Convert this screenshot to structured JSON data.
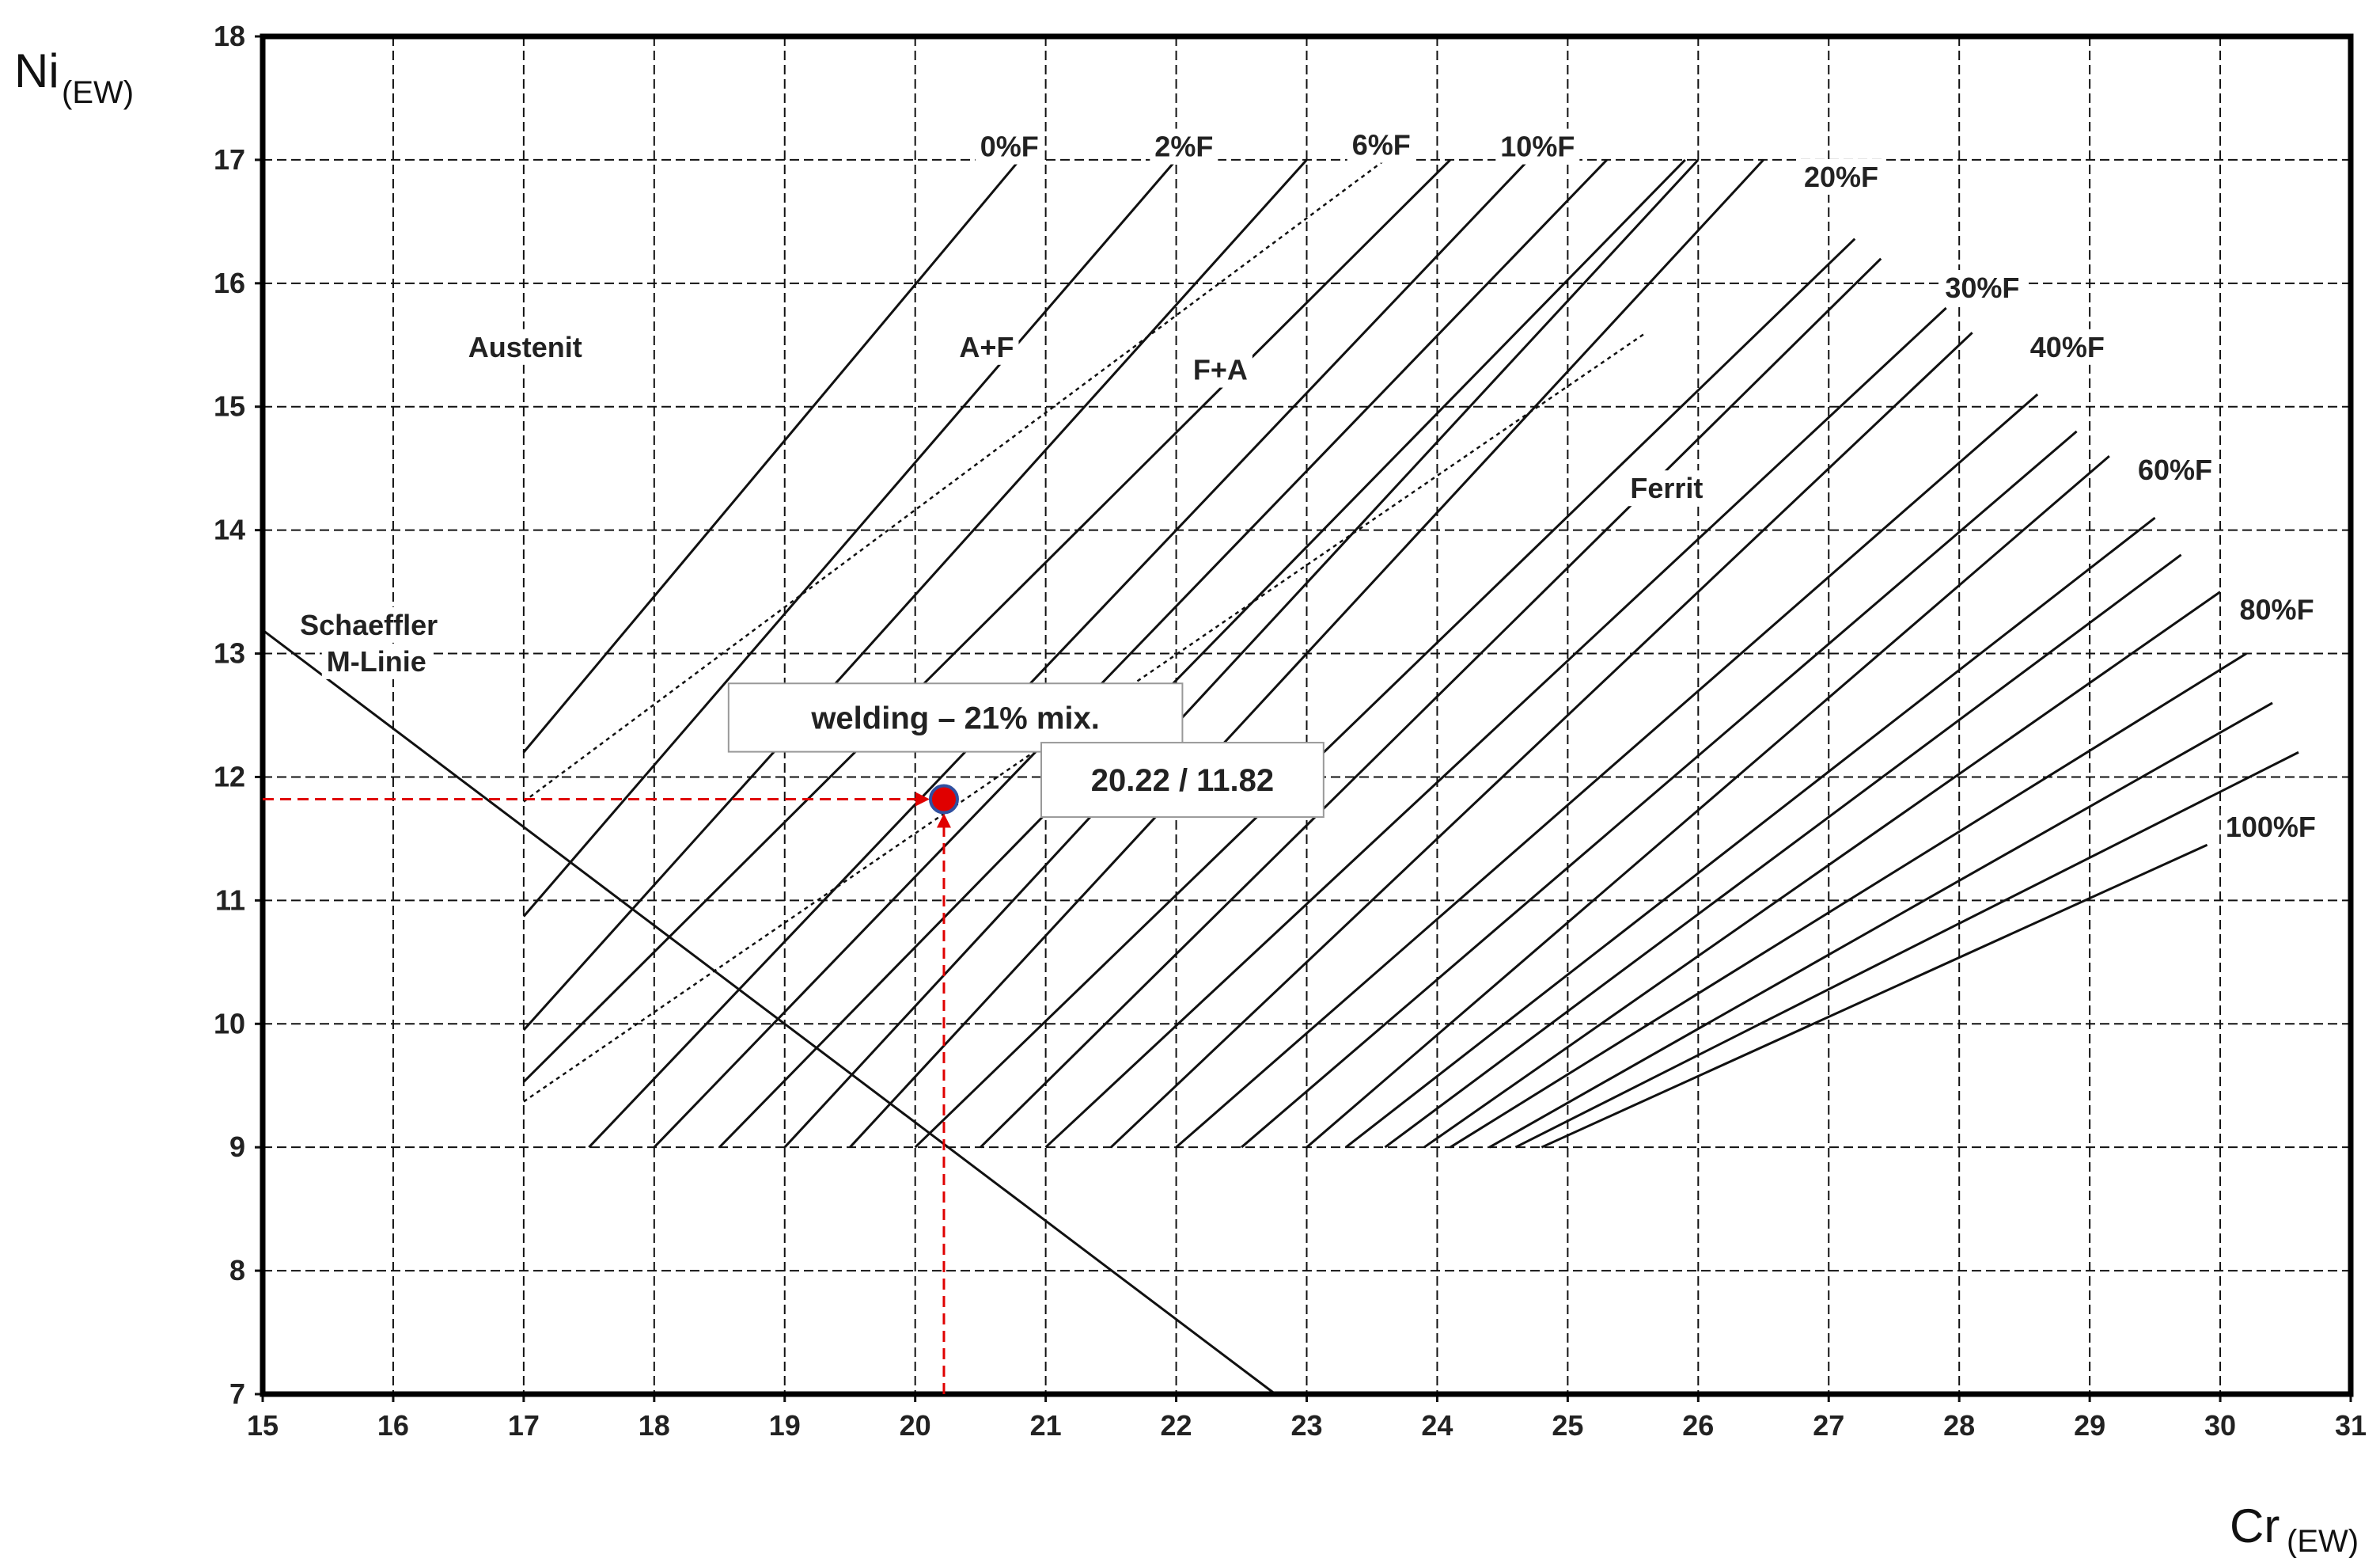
{
  "chart_data": {
    "type": "schaeffler",
    "ylabel": "Ni",
    "ylabel_sub": "(EW)",
    "xlabel": "Cr",
    "xlabel_sub": "(EW)",
    "xlim": [
      15,
      31
    ],
    "ylim": [
      7,
      18
    ],
    "xticks": [
      15,
      16,
      17,
      18,
      19,
      20,
      21,
      22,
      23,
      24,
      25,
      26,
      27,
      28,
      29,
      30,
      31
    ],
    "yticks": [
      7,
      8,
      9,
      10,
      11,
      12,
      13,
      14,
      15,
      16,
      17,
      18
    ],
    "grid": true,
    "line_color": "#111111",
    "lines": [
      {
        "x": [
          17,
          20.8
        ],
        "y": [
          12.2,
          17
        ]
      },
      {
        "x": [
          17,
          22
        ],
        "y": [
          10.87,
          17
        ]
      },
      {
        "x": [
          17,
          23
        ],
        "y": [
          9.95,
          17
        ]
      },
      {
        "x": [
          17,
          24.1
        ],
        "y": [
          9.53,
          17
        ]
      },
      {
        "x": [
          17.5,
          24.7
        ],
        "y": [
          9,
          17
        ]
      },
      {
        "x": [
          18,
          25.3
        ],
        "y": [
          9,
          17
        ]
      },
      {
        "x": [
          18.5,
          25.9
        ],
        "y": [
          9,
          17
        ]
      },
      {
        "x": [
          19,
          26
        ],
        "y": [
          9,
          17
        ]
      },
      {
        "x": [
          19.5,
          26.5
        ],
        "y": [
          9,
          17
        ]
      },
      {
        "x": [
          20,
          27.2
        ],
        "y": [
          9,
          16.36
        ]
      },
      {
        "x": [
          20.5,
          27.4
        ],
        "y": [
          9,
          16.2
        ]
      },
      {
        "x": [
          21,
          27.9
        ],
        "y": [
          9,
          15.8
        ]
      },
      {
        "x": [
          21.5,
          28.1
        ],
        "y": [
          9,
          15.6
        ]
      },
      {
        "x": [
          22,
          28.6
        ],
        "y": [
          9,
          15.1
        ]
      },
      {
        "x": [
          22.5,
          28.9
        ],
        "y": [
          9,
          14.8
        ]
      },
      {
        "x": [
          23,
          29.15
        ],
        "y": [
          9,
          14.6
        ]
      },
      {
        "x": [
          23.3,
          29.5
        ],
        "y": [
          9,
          14.1
        ]
      },
      {
        "x": [
          23.6,
          29.7
        ],
        "y": [
          9,
          13.8
        ]
      },
      {
        "x": [
          23.9,
          30
        ],
        "y": [
          9,
          13.5
        ]
      },
      {
        "x": [
          24.1,
          30.2
        ],
        "y": [
          9,
          13
        ]
      },
      {
        "x": [
          24.4,
          30.4
        ],
        "y": [
          9,
          12.6
        ]
      },
      {
        "x": [
          24.6,
          30.6
        ],
        "y": [
          9,
          12.2
        ]
      },
      {
        "x": [
          24.8,
          29.9
        ],
        "y": [
          9,
          11.45
        ]
      }
    ],
    "dotted_lines": [
      {
        "x": [
          17,
          23.6
        ],
        "y": [
          11.8,
          17
        ]
      },
      {
        "x": [
          17,
          25.6
        ],
        "y": [
          9.37,
          15.6
        ]
      }
    ],
    "m_line": {
      "x": [
        15,
        22.76
      ],
      "y": [
        13.19,
        7
      ]
    },
    "annotations": [
      "0%F",
      "2%F",
      "6%F",
      "10%F",
      "20%F",
      "30%F",
      "40%F",
      "60%F",
      "80%F",
      "100%F",
      "Austenit",
      "A+F",
      "F+A",
      "Ferrit",
      "Schaeffler",
      "M-Linie"
    ],
    "point": {
      "name": "welding – 21% mix.",
      "x": 20.22,
      "y": 11.82,
      "label": "20.22 / 11.82",
      "color": "#e00000",
      "edge": "#3050a0"
    }
  }
}
